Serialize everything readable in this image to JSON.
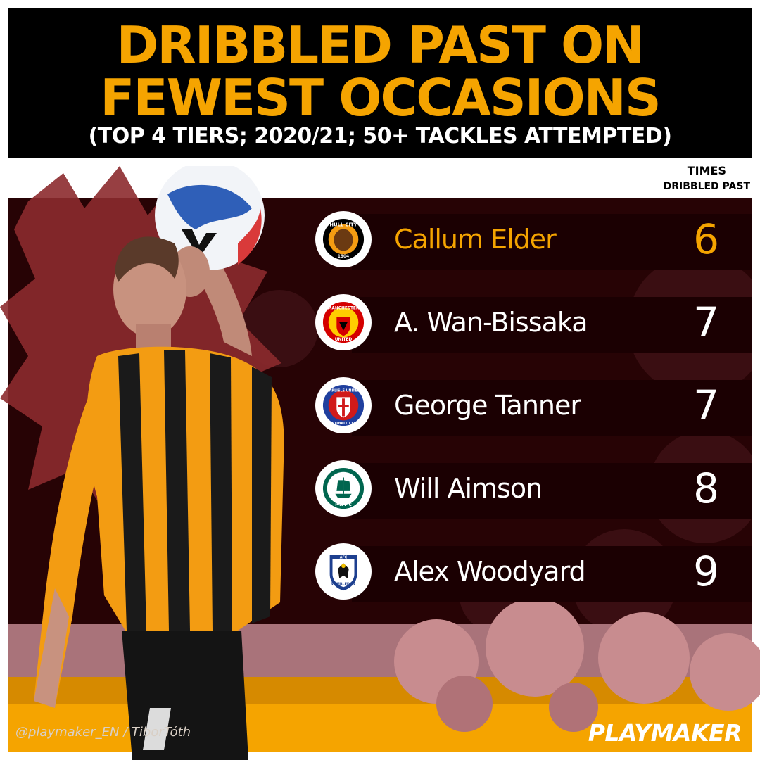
{
  "title": {
    "line1": "DRIBBLED PAST ON",
    "line2": "FEWEST OCCASIONS",
    "subtitle": "(TOP 4 TIERS; 2020/21; 50+ TACKLES ATTEMPTED)"
  },
  "column_header": {
    "line1": "TIMES",
    "line2": "DRIBBLED PAST"
  },
  "players": [
    {
      "name": "Callum Elder",
      "value": "6",
      "club_badge": "hull-city-badge-icon",
      "highlight": true
    },
    {
      "name": "A. Wan-Bissaka",
      "value": "7",
      "club_badge": "manchester-united-badge-icon",
      "highlight": false
    },
    {
      "name": "George Tanner",
      "value": "7",
      "club_badge": "carlisle-united-badge-icon",
      "highlight": false
    },
    {
      "name": "Will Aimson",
      "value": "8",
      "club_badge": "plymouth-argyle-badge-icon",
      "highlight": false
    },
    {
      "name": "Alex Woodyard",
      "value": "9",
      "club_badge": "afc-wimbledon-badge-icon",
      "highlight": false
    }
  ],
  "footer": {
    "credit": "@playmaker_EN / TiborTóth",
    "brand": "PLAYMAKER"
  },
  "badge_text": {
    "hull_top": "HULL CITY",
    "hull_year": "1904",
    "manutd_top": "MANCHESTER",
    "manutd_bottom": "UNITED",
    "carlisle_top": "CARLISLE UNITED",
    "carlisle_bottom": "FOOTBALL CLUB",
    "plymouth_bottom": "P·A·F·C",
    "wimbledon_top": "AFC",
    "wimbledon_bottom": "WIMBLEDON"
  },
  "colors": {
    "accent": "#f5a400",
    "panel": "#270305",
    "text": "#ffffff"
  }
}
